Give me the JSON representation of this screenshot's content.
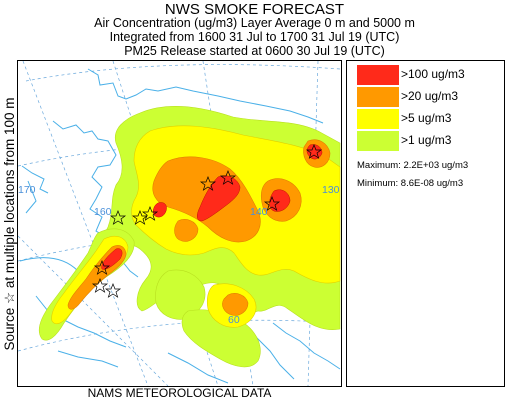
{
  "title": {
    "line1": "NWS SMOKE FORECAST",
    "line2": "Air Concentration (ug/m3) Layer Average    0 m and  5000 m",
    "line3": "Integrated from 1600 31 Jul to 1700 31 Jul 19 (UTC)",
    "line4": "PM25 Release started at 0600 30 Jul 19 (UTC)"
  },
  "side_label": "Source ☆ at multiple locations   from   100 m",
  "legend": {
    "items": [
      {
        "label": ">100 ug/m3",
        "color": "#ff2a1a"
      },
      {
        "label": ">20 ug/m3",
        "color": "#ff9900"
      },
      {
        "label": ">5 ug/m3",
        "color": "#ffff00"
      },
      {
        "label": ">1 ug/m3",
        "color": "#ccff33"
      }
    ],
    "maximum": "Maximum: 2.2E+03 ug/m3",
    "minimum": "Minimum: 8.6E-08 ug/m3"
  },
  "map": {
    "longitude_labels": [
      "170",
      "160",
      "140",
      "130",
      "60"
    ],
    "coastline_color": "#4ab0e8",
    "grid_color": "#6aa8dc"
  },
  "footer": "NAMS METEOROLOGICAL DATA"
}
